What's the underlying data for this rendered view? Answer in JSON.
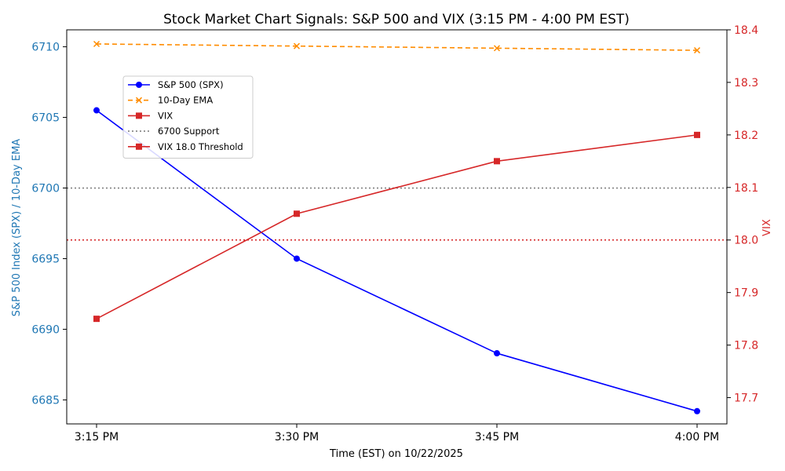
{
  "chart_data": {
    "type": "line",
    "title": "Stock Market Chart Signals: S&P 500 and VIX (3:15 PM - 4:00 PM EST)",
    "xlabel": "Time (EST) on 10/22/2025",
    "ylabel_left": "S&P 500 Index (SPX) / 10-Day EMA",
    "ylabel_right": "VIX",
    "categories": [
      "3:15 PM",
      "3:30 PM",
      "3:45 PM",
      "4:00 PM"
    ],
    "ylim_left": [
      6683.3,
      6711.2
    ],
    "ylim_right": [
      17.65,
      18.4
    ],
    "yticks_left": [
      6685,
      6690,
      6695,
      6700,
      6705,
      6710
    ],
    "yticks_right": [
      17.7,
      17.8,
      17.9,
      18.0,
      18.1,
      18.2,
      18.3,
      18.4
    ],
    "grid": false,
    "legend_position": "upper-left",
    "series": [
      {
        "name": "S&P 500 (SPX)",
        "axis": "left",
        "color": "#0000ff",
        "style": "solid",
        "marker": "circle",
        "values": [
          6705.5,
          6695.0,
          6688.3,
          6684.2
        ]
      },
      {
        "name": "10-Day EMA",
        "axis": "left",
        "color": "#ff8c00",
        "style": "dashed",
        "marker": "x",
        "values": [
          6710.2,
          6710.05,
          6709.9,
          6709.75
        ]
      },
      {
        "name": "VIX",
        "axis": "right",
        "color": "#d62728",
        "style": "solid",
        "marker": "square",
        "values": [
          17.85,
          18.05,
          18.15,
          18.2
        ]
      }
    ],
    "reference_lines": [
      {
        "name": "6700 Support",
        "axis": "left",
        "value": 6700,
        "color": "#808080",
        "style": "dotted"
      },
      {
        "name": "VIX 18.0 Threshold",
        "axis": "right",
        "value": 18.0,
        "color": "#d62728",
        "style": "dotted",
        "legend_style": "solid-square"
      }
    ]
  }
}
